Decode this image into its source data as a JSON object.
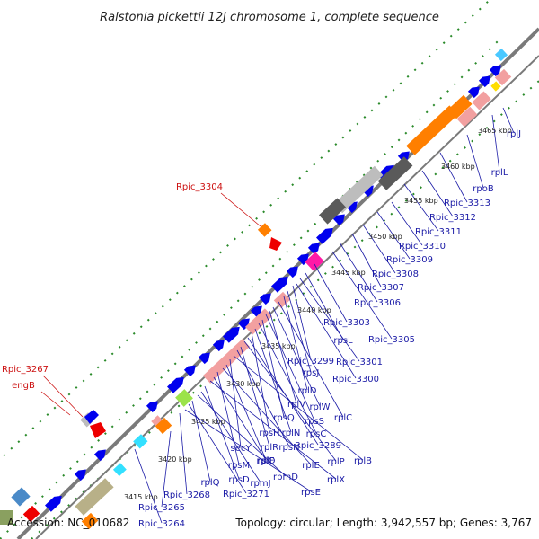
{
  "title": "Ralstonia pickettii 12J chromosome 1, complete sequence",
  "footer": {
    "accession": "Accession: NC_010682",
    "summary": "Topology: circular; Length: 3,942,557 bp; Genes: 3,767"
  },
  "colors": {
    "backbone": "#7a7a7a",
    "forward_gene": "#0000ee",
    "rna_gene": "#f2a0a0",
    "highlight_gene": "#ff7f00",
    "gray_block": "#bdbdbd",
    "dark_block": "#5a5a5a",
    "magenta_block": "#ff1aa6",
    "cyan_block": "#33e0ff",
    "olive_block": "#b8b088",
    "green_dots": "#2a8a2a",
    "label_blue": "#1a1aa6",
    "label_red": "#cc1111"
  },
  "scale_labels": [
    "3415 kbp",
    "3420 kbp",
    "3425 kbp",
    "3430 kbp",
    "3435 kbp",
    "3440 kbp",
    "3445 kbp",
    "3450 kbp",
    "3455 kbp",
    "3460 kbp",
    "3465 kbp"
  ],
  "gene_labels": [
    "rplJ",
    "rplL",
    "rpoB",
    "Rpic_3313",
    "Rpic_3312",
    "Rpic_3311",
    "Rpic_3310",
    "Rpic_3309",
    "Rpic_3308",
    "Rpic_3307",
    "Rpic_3306",
    "Rpic_3305",
    "Rpic_3303",
    "rpsL",
    "Rpic_3301",
    "Rpic_3299",
    "Rpic_3300",
    "rpsJ",
    "rplD",
    "rplC",
    "rplW",
    "rplV",
    "rpsS",
    "rpsQ",
    "rpsC",
    "rplN",
    "rpsH",
    "Rpic_3289",
    "rplP",
    "rplR",
    "rpsN",
    "rplB",
    "secY",
    "rplF",
    "rplE",
    "rpsM",
    "rplO",
    "rplX",
    "rpsD",
    "rpmJ",
    "rpmD",
    "rplQ",
    "Rpic_3271",
    "rpsE",
    "Rpic_3268",
    "Rpic_3265",
    "Rpic_3264"
  ],
  "red_labels": [
    "Rpic_3304",
    "Rpic_3267",
    "engB"
  ]
}
